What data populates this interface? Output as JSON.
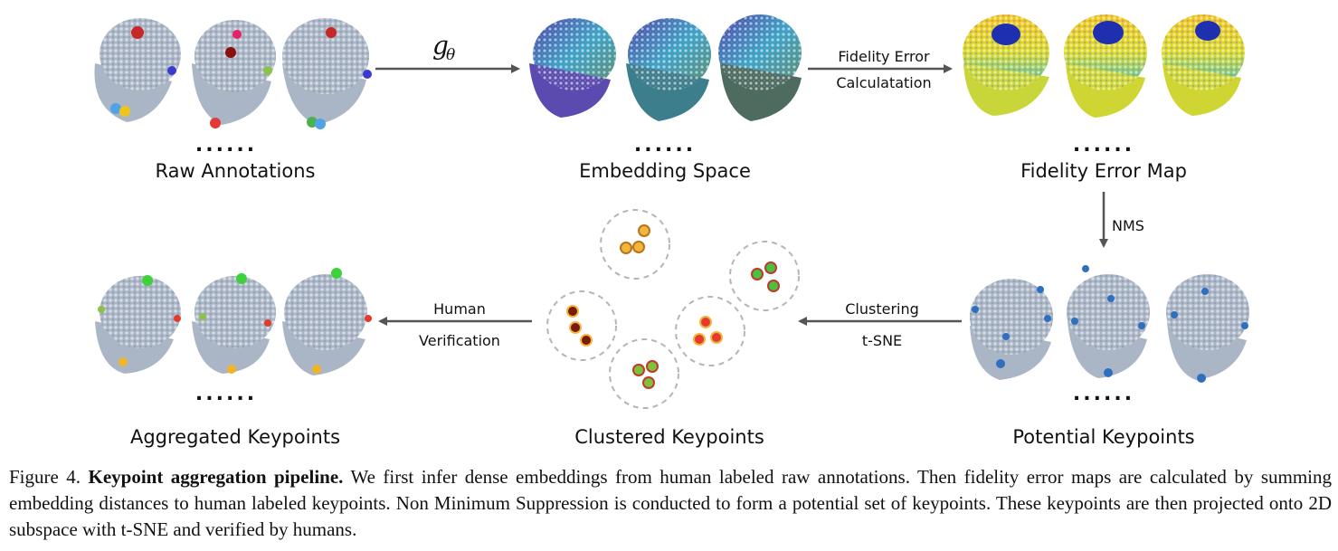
{
  "nodes": {
    "raw": {
      "label": "Raw Annotations",
      "ellipsis": "......"
    },
    "embed": {
      "label": "Embedding Space",
      "ellipsis": "......"
    },
    "fidelity": {
      "label": "Fidelity Error Map",
      "ellipsis": "......"
    },
    "potential": {
      "label": "Potential Keypoints",
      "ellipsis": "......"
    },
    "clustered": {
      "label": "Clustered Keypoints"
    },
    "aggregated": {
      "label": "Aggregated Keypoints",
      "ellipsis": "......"
    }
  },
  "edges": {
    "g_theta": {
      "symbol": "g",
      "subscript": "θ"
    },
    "fidelity_calc": {
      "line1": "Fidelity Error",
      "line2": "Calculatation"
    },
    "nms": {
      "label": "NMS"
    },
    "clustering": {
      "line1": "Clustering",
      "line2": "t-SNE"
    },
    "human": {
      "line1": "Human",
      "line2": "Verification"
    }
  },
  "caption": {
    "prefix": "Figure 4.",
    "title": "Keypoint aggregation pipeline.",
    "text": "We first infer dense embeddings from human labeled raw annotations. Then fidelity error maps are calculated by summing embedding distances to human labeled keypoints. Non Minimum Suppression is conducted to form a potential set of keypoints. These keypoints are then projected onto 2D subspace with t-SNE and verified by humans."
  },
  "colors": {
    "cloud": "#aab6c6",
    "arrow": "#555555",
    "keypoint_blue": "#2f6fc0",
    "cluster_border": "#b5b5b5",
    "cluster_orange": "#f1b63c",
    "cluster_green": "#48c23f",
    "cluster_red": "#e53a2f",
    "cluster_darkred": "#7a1a08",
    "cluster_lime": "#7dc23a",
    "agg_green": "#3ed13a",
    "agg_red": "#e23a2f",
    "agg_yellow": "#f0b426"
  }
}
